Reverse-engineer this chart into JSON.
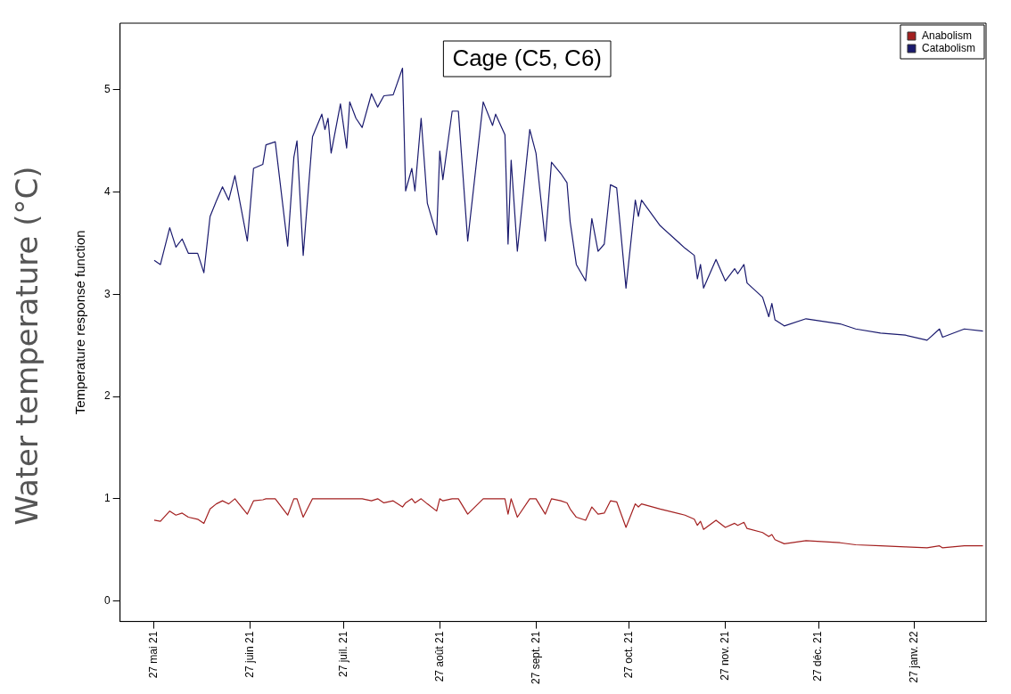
{
  "chart_data": {
    "type": "line",
    "title": "Cage (C5, C6)",
    "ylabel": "Temperature response function",
    "annotations": [
      "Water temperature (°C)"
    ],
    "legend": "top right",
    "x": [
      "2021-05-27",
      "2021-05-29",
      "2021-06-01",
      "2021-06-03",
      "2021-06-05",
      "2021-06-07",
      "2021-06-10",
      "2021-06-12",
      "2021-06-14",
      "2021-06-16",
      "2021-06-18",
      "2021-06-20",
      "2021-06-22",
      "2021-06-26",
      "2021-06-28",
      "2021-07-01",
      "2021-07-02",
      "2021-07-05",
      "2021-07-09",
      "2021-07-11",
      "2021-07-12",
      "2021-07-14",
      "2021-07-17",
      "2021-07-20",
      "2021-07-21",
      "2021-07-22",
      "2021-07-23",
      "2021-07-26",
      "2021-07-28",
      "2021-07-29",
      "2021-07-31",
      "2021-08-02",
      "2021-08-05",
      "2021-08-07",
      "2021-08-09",
      "2021-08-12",
      "2021-08-15",
      "2021-08-16",
      "2021-08-18",
      "2021-08-19",
      "2021-08-21",
      "2021-08-23",
      "2021-08-26",
      "2021-08-27",
      "2021-08-28",
      "2021-08-31",
      "2021-09-02",
      "2021-09-05",
      "2021-09-10",
      "2021-09-13",
      "2021-09-14",
      "2021-09-17",
      "2021-09-18",
      "2021-09-19",
      "2021-09-21",
      "2021-09-25",
      "2021-09-27",
      "2021-09-30",
      "2021-10-02",
      "2021-10-05",
      "2021-10-07",
      "2021-10-08",
      "2021-10-10",
      "2021-10-13",
      "2021-10-15",
      "2021-10-17",
      "2021-10-19",
      "2021-10-21",
      "2021-10-23",
      "2021-10-26",
      "2021-10-29",
      "2021-10-30",
      "2021-10-31",
      "2021-11-06",
      "2021-11-14",
      "2021-11-17",
      "2021-11-18",
      "2021-11-19",
      "2021-11-20",
      "2021-11-24",
      "2021-11-27",
      "2021-11-30",
      "2021-12-01",
      "2021-12-03",
      "2021-12-04",
      "2021-12-09",
      "2021-12-11",
      "2021-12-12",
      "2021-12-13",
      "2021-12-16",
      "2021-12-23",
      "2022-01-03",
      "2022-01-08",
      "2022-01-16",
      "2022-01-24",
      "2022-01-31",
      "2022-02-04",
      "2022-02-05",
      "2022-02-12",
      "2022-02-18"
    ],
    "series": [
      {
        "name": "Anabolism",
        "color": "#a32020",
        "values": [
          0.79,
          0.78,
          0.88,
          0.84,
          0.86,
          0.82,
          0.8,
          0.76,
          0.9,
          0.95,
          0.98,
          0.95,
          1.0,
          0.85,
          0.98,
          0.99,
          1.0,
          1.0,
          0.84,
          1.0,
          1.0,
          0.82,
          1.0,
          1.0,
          1.0,
          1.0,
          1.0,
          1.0,
          1.0,
          1.0,
          1.0,
          1.0,
          0.98,
          1.0,
          0.96,
          0.98,
          0.92,
          0.96,
          1.0,
          0.96,
          1.0,
          0.95,
          0.88,
          1.0,
          0.98,
          1.0,
          1.0,
          0.85,
          1.0,
          1.0,
          1.0,
          1.0,
          0.85,
          1.0,
          0.82,
          1.0,
          1.0,
          0.85,
          1.0,
          0.98,
          0.96,
          0.9,
          0.82,
          0.79,
          0.92,
          0.85,
          0.86,
          0.98,
          0.97,
          0.72,
          0.95,
          0.92,
          0.95,
          0.9,
          0.84,
          0.8,
          0.74,
          0.78,
          0.7,
          0.79,
          0.72,
          0.76,
          0.74,
          0.77,
          0.71,
          0.67,
          0.63,
          0.65,
          0.6,
          0.56,
          0.59,
          0.57,
          0.55,
          0.54,
          0.53,
          0.52,
          0.54,
          0.52,
          0.54,
          0.54
        ]
      },
      {
        "name": "Catabolism",
        "color": "#1a1a6e",
        "values": [
          3.33,
          3.29,
          3.65,
          3.46,
          3.54,
          3.4,
          3.4,
          3.21,
          3.76,
          3.91,
          4.05,
          3.92,
          4.16,
          3.52,
          4.23,
          4.27,
          4.46,
          4.49,
          3.47,
          4.34,
          4.5,
          3.38,
          4.54,
          4.76,
          4.61,
          4.72,
          4.38,
          4.86,
          4.43,
          4.88,
          4.72,
          4.63,
          4.96,
          4.83,
          4.94,
          4.95,
          5.21,
          4.01,
          4.23,
          4.01,
          4.72,
          3.89,
          3.58,
          4.4,
          4.12,
          4.79,
          4.79,
          3.52,
          4.88,
          4.65,
          4.76,
          4.56,
          3.49,
          4.31,
          3.42,
          4.61,
          4.38,
          3.52,
          4.29,
          4.18,
          4.09,
          3.71,
          3.29,
          3.13,
          3.74,
          3.42,
          3.49,
          4.07,
          4.04,
          3.06,
          3.92,
          3.76,
          3.92,
          3.67,
          3.45,
          3.38,
          3.15,
          3.29,
          3.06,
          3.34,
          3.13,
          3.25,
          3.2,
          3.29,
          3.11,
          2.97,
          2.78,
          2.91,
          2.75,
          2.69,
          2.76,
          2.71,
          2.66,
          2.62,
          2.6,
          2.55,
          2.66,
          2.58,
          2.66,
          2.64
        ]
      }
    ],
    "xlim": [
      "2021-05-16",
      "2022-02-19"
    ],
    "xticks": [
      {
        "value": "2021-05-27",
        "label": "27 mai 21"
      },
      {
        "value": "2021-06-27",
        "label": "27 juin 21"
      },
      {
        "value": "2021-07-27",
        "label": "27 juil. 21"
      },
      {
        "value": "2021-08-27",
        "label": "27 août 21"
      },
      {
        "value": "2021-09-27",
        "label": "27 sept. 21"
      },
      {
        "value": "2021-10-27",
        "label": "27 oct. 21"
      },
      {
        "value": "2021-11-27",
        "label": "27 nov. 21"
      },
      {
        "value": "2021-12-27",
        "label": "27 déc. 21"
      },
      {
        "value": "2022-01-27",
        "label": "27 janv. 22"
      }
    ],
    "ylim": [
      -0.2,
      5.65
    ],
    "yticks": [
      0,
      1,
      2,
      3,
      4,
      5
    ]
  }
}
